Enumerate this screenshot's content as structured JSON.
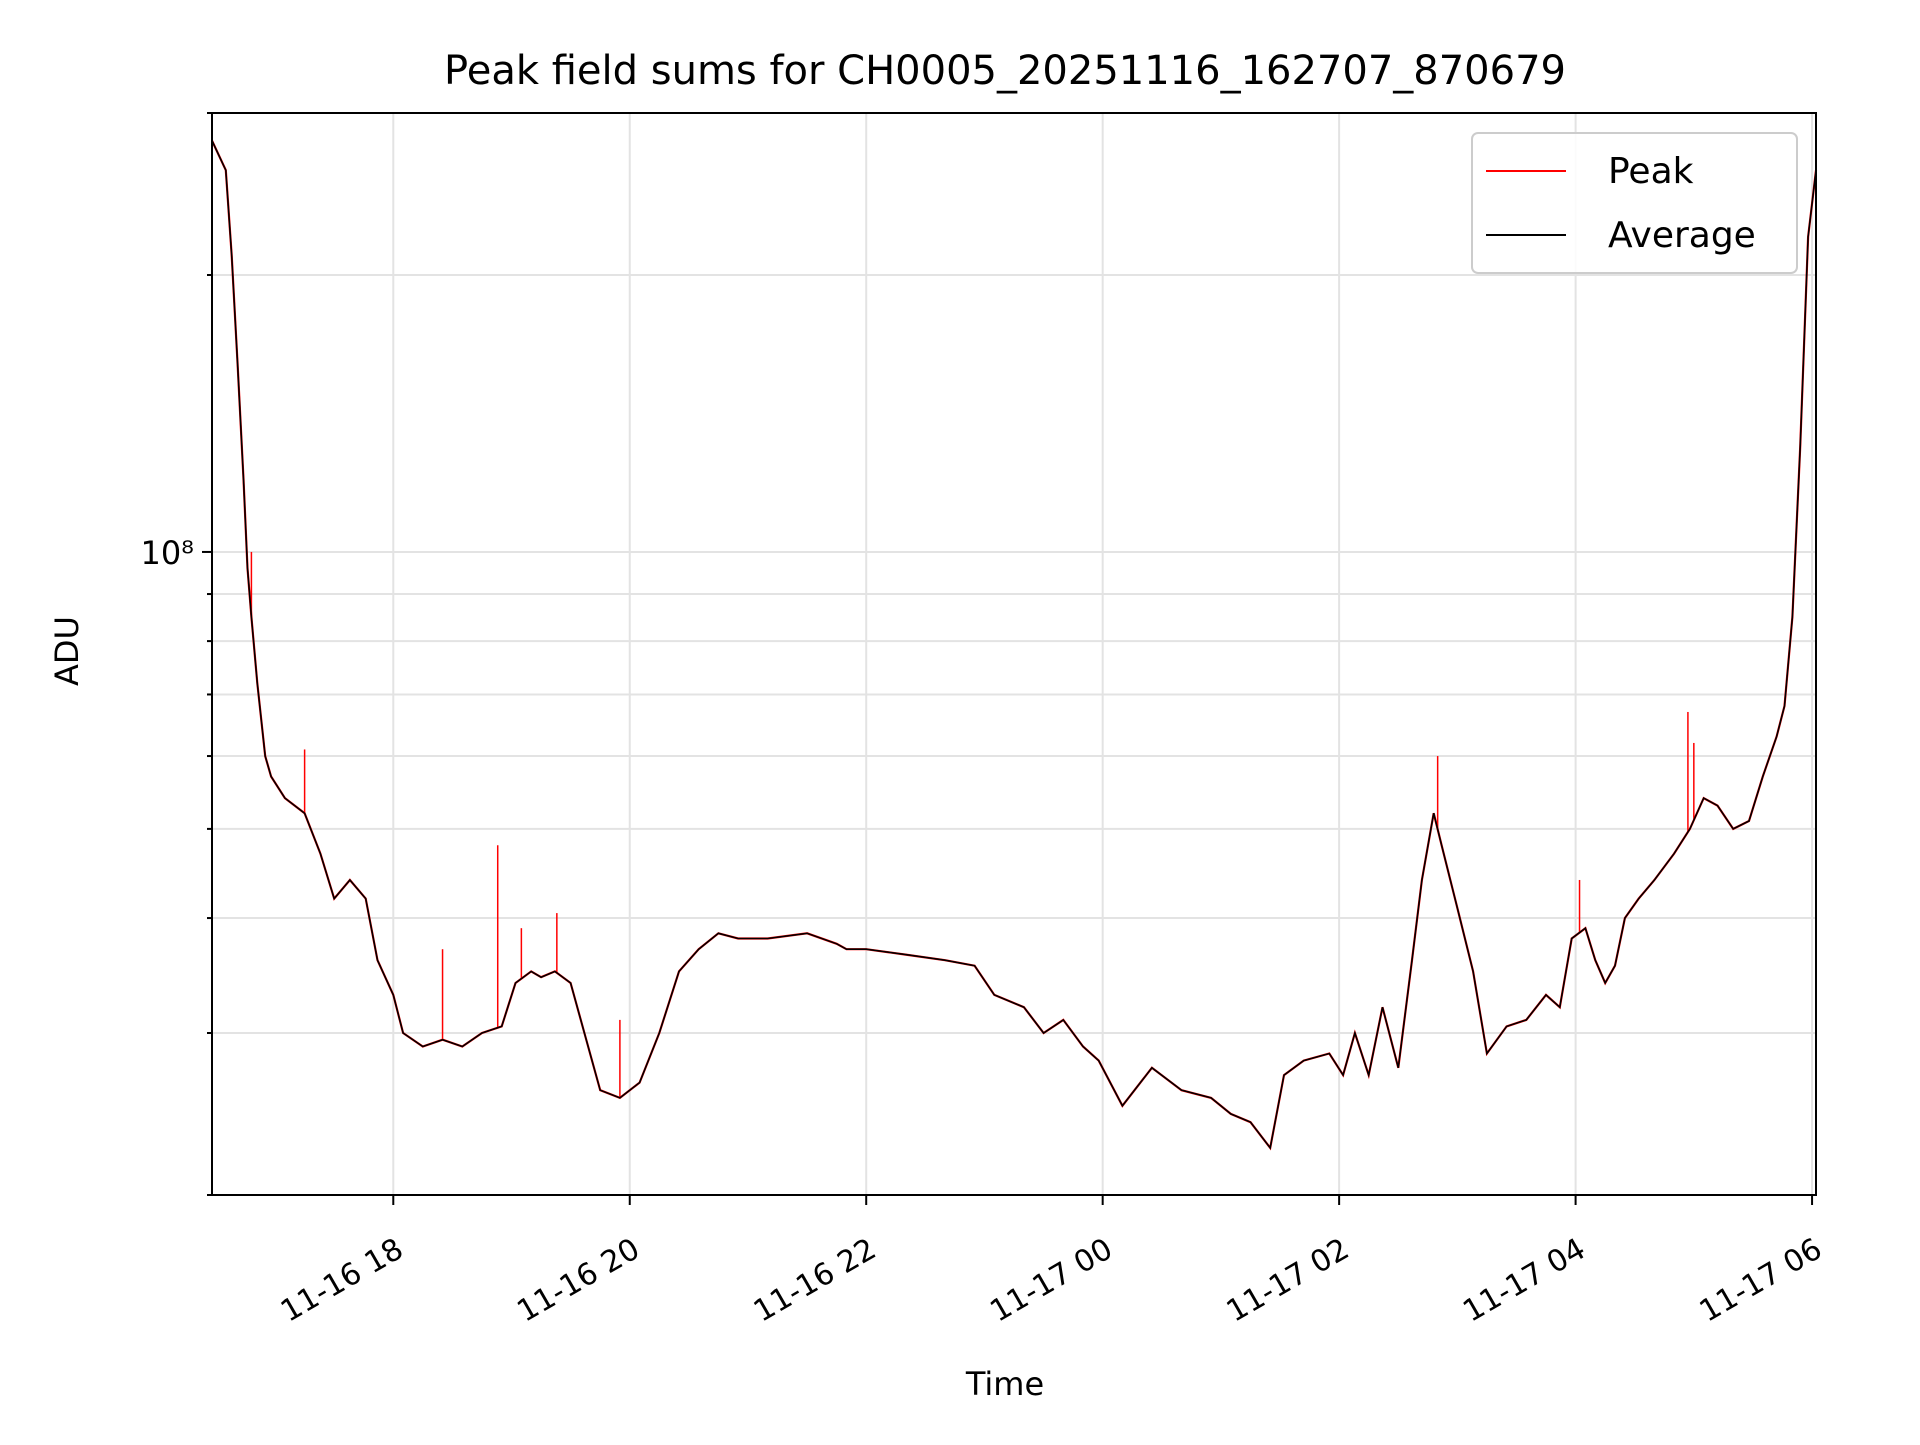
{
  "chart_data": {
    "type": "line",
    "title": "Peak field sums for CH0005_20251116_162707_870679",
    "xlabel": "Time",
    "ylabel": "ADU",
    "y_scale": "log",
    "ylim": [
      20000000,
      300000000
    ],
    "xlim": [
      "2025-11-16T16:28",
      "2025-11-17T06:02"
    ],
    "grid": true,
    "legend_position": "top-right",
    "x_ticks": [
      {
        "t": "2025-11-16T18:00",
        "label": "11-16 18"
      },
      {
        "t": "2025-11-16T20:00",
        "label": "11-16 20"
      },
      {
        "t": "2025-11-16T22:00",
        "label": "11-16 22"
      },
      {
        "t": "2025-11-17T00:00",
        "label": "11-17 00"
      },
      {
        "t": "2025-11-17T02:00",
        "label": "11-17 02"
      },
      {
        "t": "2025-11-17T04:00",
        "label": "11-17 04"
      },
      {
        "t": "2025-11-17T06:00",
        "label": "11-17 06"
      }
    ],
    "y_ticks": [
      {
        "value": 100000000,
        "label": "10⁸"
      }
    ],
    "series": [
      {
        "name": "Peak",
        "color": "#ff0000",
        "spikes": [
          {
            "t": "2025-11-16T16:48",
            "value": 100000000
          },
          {
            "t": "2025-11-16T17:15",
            "value": 61000000
          },
          {
            "t": "2025-11-16T18:25",
            "value": 37000000
          },
          {
            "t": "2025-11-16T18:53",
            "value": 48000000
          },
          {
            "t": "2025-11-16T19:05",
            "value": 39000000
          },
          {
            "t": "2025-11-16T19:23",
            "value": 40500000
          },
          {
            "t": "2025-11-16T19:55",
            "value": 31000000
          },
          {
            "t": "2025-11-17T02:50",
            "value": 60000000
          },
          {
            "t": "2025-11-17T04:02",
            "value": 44000000
          },
          {
            "t": "2025-11-17T04:57",
            "value": 67000000
          },
          {
            "t": "2025-11-17T05:00",
            "value": 62000000
          }
        ]
      },
      {
        "name": "Average",
        "color": "#000000",
        "t": [
          "2025-11-16T16:28",
          "2025-11-16T16:35",
          "2025-11-16T16:38",
          "2025-11-16T16:41",
          "2025-11-16T16:44",
          "2025-11-16T16:46",
          "2025-11-16T16:48",
          "2025-11-16T16:51",
          "2025-11-16T16:55",
          "2025-11-16T16:58",
          "2025-11-16T17:05",
          "2025-11-16T17:15",
          "2025-11-16T17:23",
          "2025-11-16T17:30",
          "2025-11-16T17:38",
          "2025-11-16T17:46",
          "2025-11-16T17:52",
          "2025-11-16T18:00",
          "2025-11-16T18:05",
          "2025-11-16T18:15",
          "2025-11-16T18:25",
          "2025-11-16T18:35",
          "2025-11-16T18:45",
          "2025-11-16T18:55",
          "2025-11-16T19:02",
          "2025-11-16T19:10",
          "2025-11-16T19:15",
          "2025-11-16T19:22",
          "2025-11-16T19:30",
          "2025-11-16T19:37",
          "2025-11-16T19:45",
          "2025-11-16T19:55",
          "2025-11-16T20:05",
          "2025-11-16T20:15",
          "2025-11-16T20:25",
          "2025-11-16T20:35",
          "2025-11-16T20:45",
          "2025-11-16T20:55",
          "2025-11-16T21:10",
          "2025-11-16T21:30",
          "2025-11-16T21:45",
          "2025-11-16T21:50",
          "2025-11-16T22:00",
          "2025-11-16T22:20",
          "2025-11-16T22:40",
          "2025-11-16T22:55",
          "2025-11-16T23:05",
          "2025-11-16T23:20",
          "2025-11-16T23:30",
          "2025-11-16T23:40",
          "2025-11-16T23:50",
          "2025-11-16T23:58",
          "2025-11-17T00:10",
          "2025-11-17T00:25",
          "2025-11-17T00:40",
          "2025-11-17T00:55",
          "2025-11-17T01:05",
          "2025-11-17T01:15",
          "2025-11-17T01:25",
          "2025-11-17T01:32",
          "2025-11-17T01:42",
          "2025-11-17T01:55",
          "2025-11-17T02:02",
          "2025-11-17T02:08",
          "2025-11-17T02:15",
          "2025-11-17T02:22",
          "2025-11-17T02:30",
          "2025-11-17T02:37",
          "2025-11-17T02:42",
          "2025-11-17T02:48",
          "2025-11-17T02:52",
          "2025-11-17T03:00",
          "2025-11-17T03:08",
          "2025-11-17T03:15",
          "2025-11-17T03:25",
          "2025-11-17T03:35",
          "2025-11-17T03:45",
          "2025-11-17T03:52",
          "2025-11-17T03:58",
          "2025-11-17T04:05",
          "2025-11-17T04:10",
          "2025-11-17T04:15",
          "2025-11-17T04:20",
          "2025-11-17T04:25",
          "2025-11-17T04:32",
          "2025-11-17T04:40",
          "2025-11-17T04:50",
          "2025-11-17T04:58",
          "2025-11-17T05:05",
          "2025-11-17T05:12",
          "2025-11-17T05:20",
          "2025-11-17T05:28",
          "2025-11-17T05:35",
          "2025-11-17T05:42",
          "2025-11-17T05:46",
          "2025-11-17T05:50",
          "2025-11-17T05:54",
          "2025-11-17T05:58",
          "2025-11-17T06:02"
        ],
        "values": [
          280000000,
          260000000,
          210000000,
          160000000,
          120000000,
          96000000,
          85000000,
          72000000,
          60000000,
          57000000,
          54000000,
          52000000,
          47000000,
          42000000,
          44000000,
          42000000,
          36000000,
          33000000,
          30000000,
          29000000,
          29500000,
          29000000,
          30000000,
          30500000,
          34000000,
          35000000,
          34500000,
          35000000,
          34000000,
          30000000,
          26000000,
          25500000,
          26500000,
          30000000,
          35000000,
          37000000,
          38500000,
          38000000,
          38000000,
          38500000,
          37500000,
          37000000,
          37000000,
          36500000,
          36000000,
          35500000,
          33000000,
          32000000,
          30000000,
          31000000,
          29000000,
          28000000,
          25000000,
          27500000,
          26000000,
          25500000,
          24500000,
          24000000,
          22500000,
          27000000,
          28000000,
          28500000,
          27000000,
          30000000,
          27000000,
          32000000,
          27500000,
          36000000,
          44000000,
          52000000,
          48000000,
          41000000,
          35000000,
          28500000,
          30500000,
          31000000,
          33000000,
          32000000,
          38000000,
          39000000,
          36000000,
          34000000,
          35500000,
          40000000,
          42000000,
          44000000,
          47000000,
          50000000,
          54000000,
          53000000,
          50000000,
          51000000,
          57000000,
          63000000,
          68000000,
          85000000,
          130000000,
          220000000,
          260000000
        ]
      }
    ]
  }
}
